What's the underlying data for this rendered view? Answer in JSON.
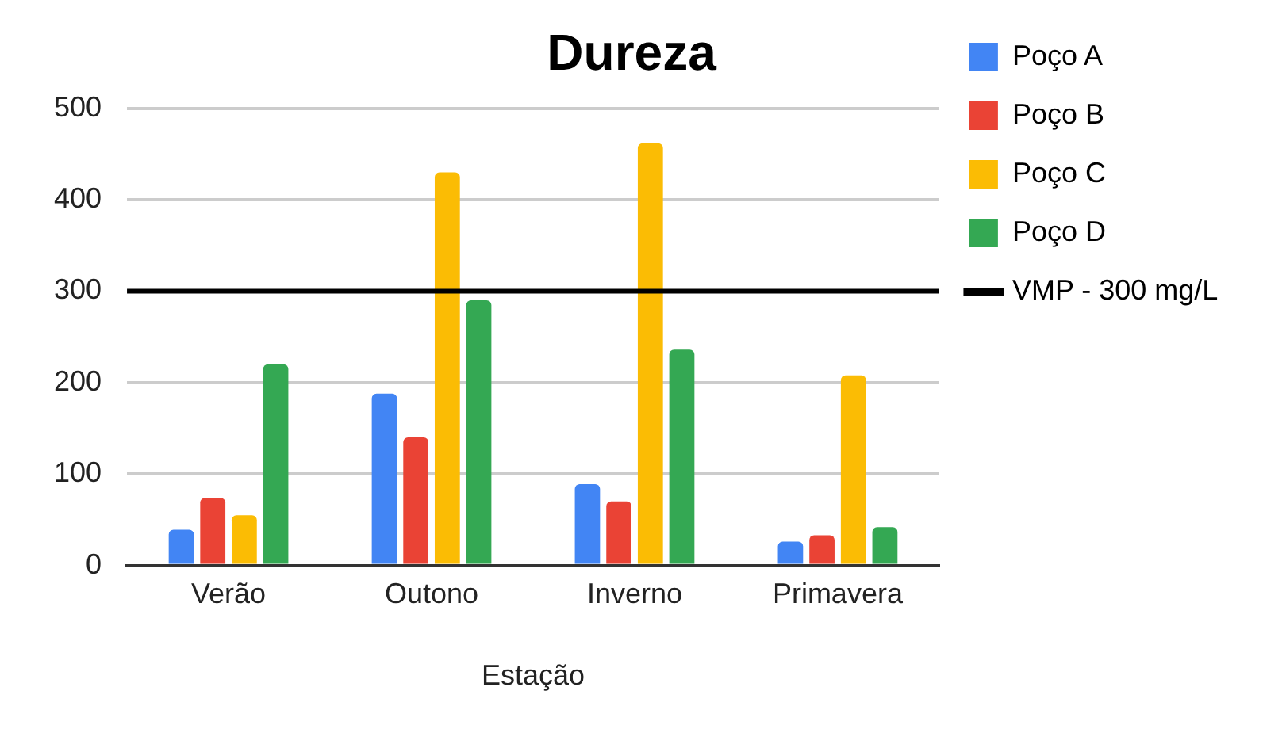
{
  "chart_data": {
    "type": "bar",
    "title": "Dureza",
    "xlabel": "Estação",
    "categories": [
      "Verão",
      "Outono",
      "Inverno",
      "Primavera"
    ],
    "series": [
      {
        "name": "Poço A",
        "color": "#4285f4",
        "values": [
          39,
          188,
          89,
          26
        ]
      },
      {
        "name": "Poço B",
        "color": "#ea4335",
        "values": [
          74,
          140,
          70,
          33
        ]
      },
      {
        "name": "Poço C",
        "color": "#fbbc04",
        "values": [
          55,
          430,
          462,
          208
        ]
      },
      {
        "name": "Poço D",
        "color": "#34a853",
        "values": [
          220,
          290,
          236,
          42
        ]
      }
    ],
    "ref_lines": [
      {
        "axis": "y",
        "value": 300,
        "label": "VMP - 300 mg/L",
        "color": "#000000",
        "line_style": "solid"
      }
    ],
    "ylim": [
      0,
      500
    ],
    "yticks": [
      0,
      100,
      200,
      300,
      400,
      500
    ],
    "grid": "y",
    "legend": "right"
  }
}
